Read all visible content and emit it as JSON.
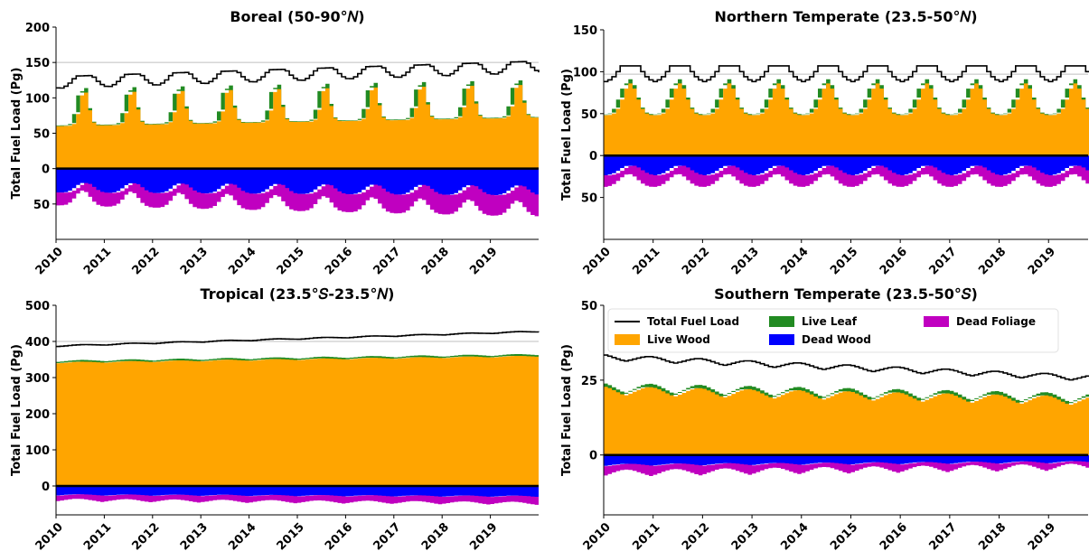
{
  "figure": {
    "colors": {
      "total": "#000000",
      "live_wood": "#ffa500",
      "live_leaf": "#228b22",
      "dead_wood": "#0000ff",
      "dead_foliage": "#c000c0",
      "ref_line": "#bfbfbf"
    }
  },
  "chart_data": [
    {
      "type": "area",
      "id": "boreal",
      "title": "Boreal (50-90°𝑁)",
      "ylabel": "Total Fuel Load (Pg)",
      "ylim": [
        -100,
        200
      ],
      "yticks": [
        200,
        150,
        100,
        50,
        0,
        -50
      ],
      "ytick_labels": [
        "200",
        "150",
        "100",
        "50",
        "0",
        "50"
      ],
      "xlim": [
        2010,
        2020
      ],
      "xticks": [
        "2010",
        "2011",
        "2012",
        "2013",
        "2014",
        "2015",
        "2016",
        "2017",
        "2018",
        "2019"
      ],
      "ref_line": 150,
      "series": [
        {
          "name": "Total Fuel Load",
          "base": 112,
          "trend": 2.2,
          "amp": 18,
          "peak": 0.55,
          "width": 0.2,
          "sat": 0.3
        },
        {
          "name": "Live Wood",
          "base": 60,
          "trend": 1.2,
          "amp": 50,
          "peak": 0.55,
          "width": 0.09
        },
        {
          "name": "Live Leaf",
          "base": 1,
          "trend": 0,
          "amp": 6,
          "peak": 0.55,
          "width": 0.08
        },
        {
          "name": "Dead Wood",
          "base": 34,
          "trend": 0.4,
          "amp": -14,
          "peak": 0.6,
          "width": 0.15
        },
        {
          "name": "Dead Foliage",
          "base": 18,
          "trend": 1.2,
          "amp": -8,
          "peak": 0.6,
          "width": 0.15
        }
      ]
    },
    {
      "type": "area",
      "id": "northern_temperate",
      "title": "Northern Temperate (23.5-50°𝑁)",
      "ylabel": "Total Fuel Load (Pg)",
      "ylim": [
        -100,
        150
      ],
      "yticks": [
        150,
        100,
        50,
        0,
        -50
      ],
      "ytick_labels": [
        "150",
        "100",
        "50",
        "0",
        "50"
      ],
      "xlim": [
        2010,
        2019.8
      ],
      "xticks": [
        "2010",
        "2011",
        "2012",
        "2013",
        "2014",
        "2015",
        "2016",
        "2017",
        "2018",
        "2019"
      ],
      "ref_line": 97,
      "series": [
        {
          "name": "Total Fuel Load",
          "base": 87,
          "trend": 0,
          "amp": 20,
          "peak": 0.5,
          "width": 0.2,
          "sat": 0.3
        },
        {
          "name": "Live Wood",
          "base": 48,
          "trend": 0,
          "amp": 38,
          "peak": 0.5,
          "width": 0.14
        },
        {
          "name": "Live Leaf",
          "base": 1,
          "trend": 0,
          "amp": 4,
          "peak": 0.5,
          "width": 0.12
        },
        {
          "name": "Dead Wood",
          "base": 24,
          "trend": 0,
          "amp": -12,
          "peak": 0.55,
          "width": 0.18
        },
        {
          "name": "Dead Foliage",
          "base": 14,
          "trend": 0,
          "amp": -4,
          "peak": 0.55,
          "width": 0.18
        }
      ]
    },
    {
      "type": "area",
      "id": "tropical",
      "title": "Tropical (23.5°𝑆-23.5°𝑁)",
      "ylabel": "Total Fuel Load (Pg)",
      "ylim": [
        -80,
        500
      ],
      "yticks": [
        500,
        400,
        300,
        200,
        100,
        0
      ],
      "ytick_labels": [
        "500",
        "400",
        "300",
        "200",
        "100",
        "0"
      ],
      "xlim": [
        2010,
        2020
      ],
      "xticks": [
        "2010",
        "2011",
        "2012",
        "2013",
        "2014",
        "2015",
        "2016",
        "2017",
        "2018",
        "2019"
      ],
      "ref_line": 400,
      "series": [
        {
          "name": "Total Fuel Load",
          "base": 385,
          "trend": 4,
          "amp": 4,
          "peak": 0.5,
          "width": 0.3
        },
        {
          "name": "Live Wood",
          "base": 338,
          "trend": 1.8,
          "amp": 5,
          "peak": 0.5,
          "width": 0.3
        },
        {
          "name": "Live Leaf",
          "base": 4,
          "trend": 0,
          "amp": 1,
          "peak": 0.5,
          "width": 0.3
        },
        {
          "name": "Dead Wood",
          "base": 28,
          "trend": 0.4,
          "amp": -5,
          "peak": 0.5,
          "width": 0.3
        },
        {
          "name": "Dead Foliage",
          "base": 18,
          "trend": 0.5,
          "amp": -6,
          "peak": 0.5,
          "width": 0.3
        }
      ]
    },
    {
      "type": "area",
      "id": "southern_temperate",
      "title": "Southern Temperate (23.5-50°𝑆)",
      "ylabel": "Total Fuel Load (Pg)",
      "ylim": [
        -20,
        50
      ],
      "yticks": [
        50,
        25,
        0
      ],
      "ytick_labels": [
        "50",
        "25",
        "0"
      ],
      "xlim": [
        2010,
        2019.8
      ],
      "xticks": [
        "2010",
        "2011",
        "2012",
        "2013",
        "2014",
        "2015",
        "2016",
        "2017",
        "2018",
        "2019"
      ],
      "ref_line": null,
      "series": [
        {
          "name": "Total Fuel Load",
          "base": 31,
          "trend": -0.7,
          "amp": 2.5,
          "peak": 0.9,
          "width": 0.3
        },
        {
          "name": "Live Wood",
          "base": 19,
          "trend": -0.35,
          "amp": 4,
          "peak": 0.9,
          "width": 0.3
        },
        {
          "name": "Live Leaf",
          "base": 0.8,
          "trend": 0,
          "amp": 0.3,
          "peak": 0.9,
          "width": 0.3
        },
        {
          "name": "Dead Wood",
          "base": 4,
          "trend": -0.1,
          "amp": -1,
          "peak": 0.5,
          "width": 0.3
        },
        {
          "name": "Dead Foliage",
          "base": 4,
          "trend": -0.12,
          "amp": -2,
          "peak": 0.5,
          "width": 0.3
        }
      ]
    }
  ],
  "legend": {
    "placement": "top of Southern Temperate panel",
    "entries": [
      {
        "label": "Total Fuel Load",
        "kind": "line",
        "color": "#000000"
      },
      {
        "label": "Live Leaf",
        "kind": "patch",
        "color": "#228b22"
      },
      {
        "label": "Dead Foliage",
        "kind": "patch",
        "color": "#c000c0"
      },
      {
        "label": "Live Wood",
        "kind": "patch",
        "color": "#ffa500"
      },
      {
        "label": "Dead Wood",
        "kind": "patch",
        "color": "#0000ff"
      }
    ]
  }
}
